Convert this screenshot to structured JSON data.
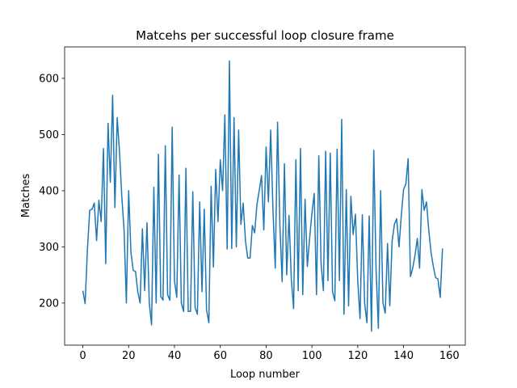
{
  "chart_data": {
    "type": "line",
    "title": "Matcehs per successful loop closure frame",
    "x_label": "Loop number",
    "y_label": "Matches",
    "color": "#1f77b4",
    "values": [
      222,
      199,
      295,
      365,
      367,
      378,
      311,
      383,
      345,
      475,
      270,
      520,
      415,
      570,
      370,
      530,
      470,
      390,
      330,
      200,
      400,
      290,
      258,
      256,
      220,
      200,
      332,
      222,
      343,
      200,
      161,
      406,
      200,
      465,
      212,
      205,
      480,
      215,
      205,
      513,
      240,
      210,
      428,
      200,
      185,
      440,
      185,
      185,
      398,
      192,
      180,
      380,
      220,
      367,
      188,
      165,
      408,
      264,
      438,
      345,
      455,
      400,
      535,
      296,
      631,
      297,
      530,
      300,
      508,
      340,
      378,
      310,
      280,
      280,
      338,
      325,
      375,
      400,
      427,
      330,
      478,
      380,
      508,
      365,
      262,
      522,
      340,
      238,
      448,
      250,
      356,
      243,
      190,
      455,
      222,
      475,
      215,
      385,
      265,
      315,
      360,
      395,
      215,
      462,
      270,
      222,
      470,
      240,
      467,
      220,
      204,
      474,
      240,
      527,
      180,
      402,
      195,
      390,
      322,
      358,
      240,
      172,
      357,
      200,
      165,
      355,
      150,
      472,
      260,
      155,
      400,
      200,
      182,
      306,
      195,
      310,
      340,
      350,
      300,
      355,
      402,
      412,
      457,
      247,
      262,
      285,
      315,
      262,
      402,
      365,
      380,
      330,
      290,
      265,
      245,
      243,
      210,
      297
    ],
    "xlim": [
      -7.95,
      166.95
    ],
    "ylim": [
      125,
      656
    ],
    "xticks": [
      0,
      20,
      40,
      60,
      80,
      100,
      120,
      140,
      160
    ],
    "yticks": [
      200,
      300,
      400,
      500,
      600
    ]
  }
}
